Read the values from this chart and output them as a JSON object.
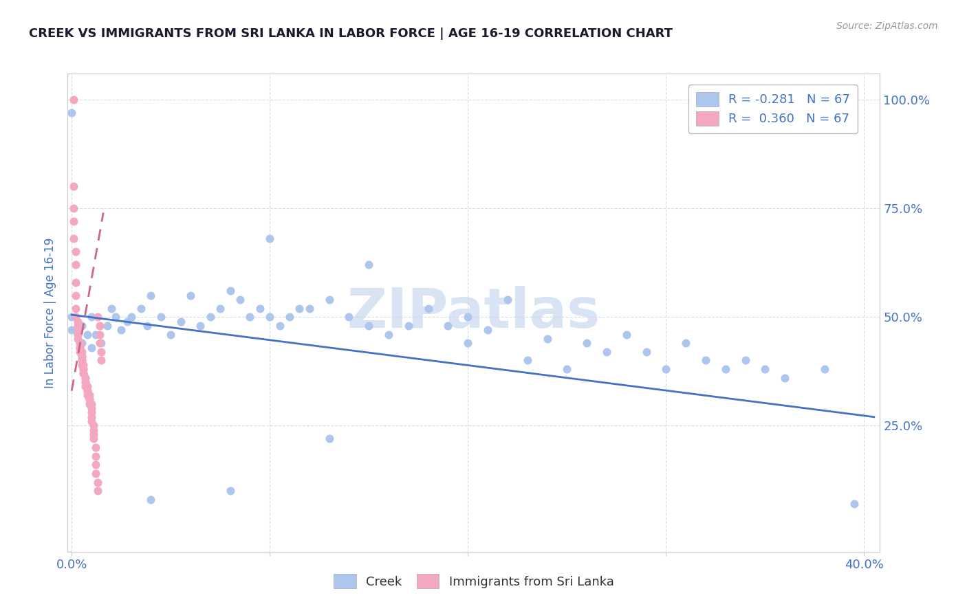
{
  "title": "CREEK VS IMMIGRANTS FROM SRI LANKA IN LABOR FORCE | AGE 16-19 CORRELATION CHART",
  "source_text": "Source: ZipAtlas.com",
  "ylabel": "In Labor Force | Age 16-19",
  "legend_label_creek": "Creek",
  "legend_label_srilanka": "Immigrants from Sri Lanka",
  "creek_color": "#adc6ed",
  "srilanka_color": "#f4a8c0",
  "creek_line_color": "#4472c4",
  "srilanka_line_color": "#e05080",
  "srilanka_trendline_color": "#cc6688",
  "grid_color": "#d4dce8",
  "title_color": "#1a1a2e",
  "tick_label_color": "#4472c4",
  "watermark_color": "#c8d8f0",
  "x_min": -0.002,
  "x_max": 0.408,
  "y_min": -0.04,
  "y_max": 1.06,
  "x_ticks": [
    0.0,
    0.1,
    0.2,
    0.3,
    0.4
  ],
  "y_ticks": [
    0.25,
    0.5,
    0.75,
    1.0
  ],
  "creek_trend_x": [
    0.0,
    0.405
  ],
  "creek_trend_y": [
    0.505,
    0.27
  ],
  "srilanka_trend_x": [
    0.0,
    0.016
  ],
  "srilanka_trend_y": [
    0.33,
    0.74
  ],
  "creek_x": [
    0.0,
    0.0,
    0.0,
    0.005,
    0.005,
    0.008,
    0.01,
    0.01,
    0.012,
    0.015,
    0.018,
    0.02,
    0.022,
    0.025,
    0.028,
    0.03,
    0.035,
    0.038,
    0.04,
    0.045,
    0.05,
    0.055,
    0.06,
    0.065,
    0.07,
    0.075,
    0.08,
    0.085,
    0.09,
    0.095,
    0.1,
    0.105,
    0.11,
    0.115,
    0.12,
    0.13,
    0.14,
    0.15,
    0.16,
    0.17,
    0.18,
    0.19,
    0.2,
    0.21,
    0.22,
    0.23,
    0.24,
    0.25,
    0.26,
    0.27,
    0.28,
    0.29,
    0.3,
    0.31,
    0.32,
    0.33,
    0.34,
    0.35,
    0.36,
    0.38,
    0.1,
    0.15,
    0.2,
    0.13,
    0.08,
    0.04,
    0.395
  ],
  "creek_y": [
    0.97,
    0.5,
    0.47,
    0.48,
    0.44,
    0.46,
    0.5,
    0.43,
    0.46,
    0.44,
    0.48,
    0.52,
    0.5,
    0.47,
    0.49,
    0.5,
    0.52,
    0.48,
    0.55,
    0.5,
    0.46,
    0.49,
    0.55,
    0.48,
    0.5,
    0.52,
    0.56,
    0.54,
    0.5,
    0.52,
    0.5,
    0.48,
    0.5,
    0.52,
    0.52,
    0.54,
    0.5,
    0.48,
    0.46,
    0.48,
    0.52,
    0.48,
    0.44,
    0.47,
    0.54,
    0.4,
    0.45,
    0.38,
    0.44,
    0.42,
    0.46,
    0.42,
    0.38,
    0.44,
    0.4,
    0.38,
    0.4,
    0.38,
    0.36,
    0.38,
    0.68,
    0.62,
    0.5,
    0.22,
    0.1,
    0.08,
    0.07
  ],
  "srilanka_x": [
    0.001,
    0.001,
    0.001,
    0.001,
    0.001,
    0.002,
    0.002,
    0.002,
    0.002,
    0.002,
    0.002,
    0.003,
    0.003,
    0.003,
    0.003,
    0.003,
    0.003,
    0.004,
    0.004,
    0.004,
    0.004,
    0.004,
    0.005,
    0.005,
    0.005,
    0.005,
    0.005,
    0.005,
    0.006,
    0.006,
    0.006,
    0.006,
    0.006,
    0.007,
    0.007,
    0.007,
    0.007,
    0.007,
    0.008,
    0.008,
    0.008,
    0.008,
    0.009,
    0.009,
    0.009,
    0.009,
    0.01,
    0.01,
    0.01,
    0.01,
    0.01,
    0.011,
    0.011,
    0.011,
    0.011,
    0.012,
    0.012,
    0.012,
    0.012,
    0.013,
    0.013,
    0.013,
    0.014,
    0.014,
    0.014,
    0.015,
    0.015
  ],
  "srilanka_y": [
    1.0,
    0.8,
    0.75,
    0.72,
    0.68,
    0.65,
    0.62,
    0.58,
    0.55,
    0.52,
    0.5,
    0.49,
    0.48,
    0.47,
    0.46,
    0.46,
    0.45,
    0.44,
    0.44,
    0.43,
    0.43,
    0.42,
    0.42,
    0.41,
    0.41,
    0.4,
    0.4,
    0.39,
    0.39,
    0.38,
    0.38,
    0.37,
    0.37,
    0.36,
    0.36,
    0.35,
    0.35,
    0.34,
    0.34,
    0.33,
    0.33,
    0.32,
    0.32,
    0.31,
    0.31,
    0.3,
    0.3,
    0.29,
    0.28,
    0.27,
    0.26,
    0.25,
    0.24,
    0.23,
    0.22,
    0.2,
    0.18,
    0.16,
    0.14,
    0.12,
    0.1,
    0.5,
    0.48,
    0.46,
    0.44,
    0.42,
    0.4
  ]
}
